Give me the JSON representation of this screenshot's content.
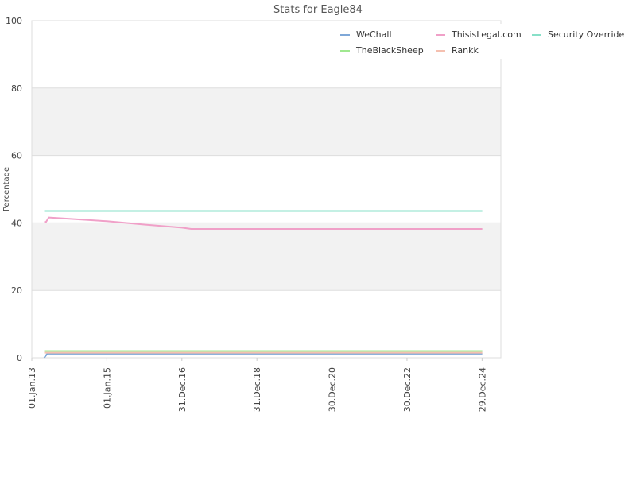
{
  "chart_data": {
    "type": "line",
    "title": "Stats for Eagle84",
    "ylabel": "Percentage",
    "xlabel": "",
    "ylim": [
      0,
      100
    ],
    "yticks": [
      0,
      20,
      40,
      60,
      80,
      100
    ],
    "xlim": [
      "2013-01-01",
      "2025-06-30"
    ],
    "xticks": [
      {
        "label": "01.Jan.13",
        "date": "2013-01-01"
      },
      {
        "label": "01.Jan.15",
        "date": "2015-01-01"
      },
      {
        "label": "31.Dec.16",
        "date": "2016-12-31"
      },
      {
        "label": "31.Dec.18",
        "date": "2018-12-31"
      },
      {
        "label": "30.Dec.20",
        "date": "2020-12-30"
      },
      {
        "label": "30.Dec.22",
        "date": "2022-12-30"
      },
      {
        "label": "29.Dec.24",
        "date": "2024-12-29"
      }
    ],
    "grid": true,
    "legend_position": "top-right",
    "series": [
      {
        "name": "WeChall",
        "color": "#7fa8d8",
        "x": [
          "2013-05-01",
          "2013-06-01",
          "2024-12-31"
        ],
        "y": [
          0,
          1.2,
          1.2
        ]
      },
      {
        "name": "ThisisLegal.com",
        "color": "#f0a0c8",
        "x": [
          "2013-05-01",
          "2013-05-20",
          "2013-06-15",
          "2014-01-01",
          "2015-01-01",
          "2016-01-01",
          "2017-01-01",
          "2017-04-01",
          "2024-12-31"
        ],
        "y": [
          40.3,
          40.3,
          41.6,
          41.2,
          40.5,
          39.5,
          38.6,
          38.2,
          38.2
        ]
      },
      {
        "name": "Security Override",
        "color": "#88e0c8",
        "x": [
          "2013-05-01",
          "2024-12-31"
        ],
        "y": [
          43.5,
          43.5
        ]
      },
      {
        "name": "TheBlackSheep",
        "color": "#a0e890",
        "x": [
          "2013-05-01",
          "2024-12-31"
        ],
        "y": [
          2.0,
          2.0
        ]
      },
      {
        "name": "Rankk",
        "color": "#f5c0b0",
        "x": [
          "2013-05-01",
          "2024-12-31"
        ],
        "y": [
          1.5,
          1.5
        ]
      }
    ]
  }
}
